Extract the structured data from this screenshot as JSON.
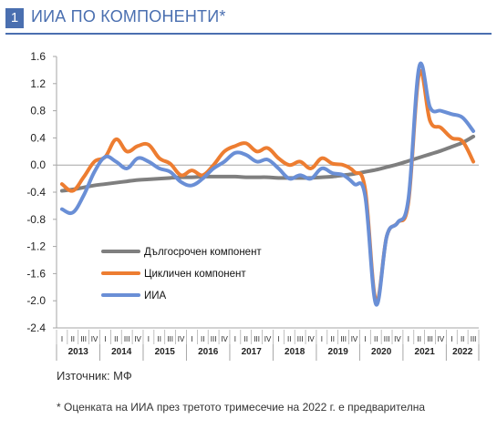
{
  "header": {
    "number": "1",
    "title": "ИИА ПО КОМПОНЕНТИ*"
  },
  "source": "Източник: МФ",
  "footnote": "*  Оценката на ИИА през третото тримесечие на 2022 г. е предварителна",
  "chart_data": {
    "type": "line",
    "ylim": [
      -2.4,
      1.6
    ],
    "yticks": [
      "1.6",
      "1.2",
      "0.8",
      "0.4",
      "0.0",
      "-0.4",
      "-0.8",
      "-1.2",
      "-1.6",
      "-2.0",
      "-2.4"
    ],
    "years": [
      "2013",
      "2014",
      "2015",
      "2016",
      "2017",
      "2018",
      "2019",
      "2020",
      "2021",
      "2022"
    ],
    "quarter_labels": [
      "I",
      "II",
      "III",
      "IV"
    ],
    "x": [
      "2013 I",
      "2013 II",
      "2013 III",
      "2013 IV",
      "2014 I",
      "2014 II",
      "2014 III",
      "2014 IV",
      "2015 I",
      "2015 II",
      "2015 III",
      "2015 IV",
      "2016 I",
      "2016 II",
      "2016 III",
      "2016 IV",
      "2017 I",
      "2017 II",
      "2017 III",
      "2017 IV",
      "2018 I",
      "2018 II",
      "2018 III",
      "2018 IV",
      "2019 I",
      "2019 II",
      "2019 III",
      "2019 IV",
      "2020 I",
      "2020 II",
      "2020 III",
      "2020 IV",
      "2021 I",
      "2021 II",
      "2021 III",
      "2021 IV",
      "2022 I",
      "2022 II",
      "2022 III"
    ],
    "grid": false,
    "legend_position": "lower-left",
    "series": [
      {
        "name": "Дългосрочен компонент",
        "color": "#7f7f7f",
        "values": [
          -0.38,
          -0.36,
          -0.33,
          -0.3,
          -0.28,
          -0.26,
          -0.24,
          -0.22,
          -0.21,
          -0.2,
          -0.19,
          -0.18,
          -0.18,
          -0.17,
          -0.17,
          -0.17,
          -0.17,
          -0.18,
          -0.18,
          -0.18,
          -0.19,
          -0.19,
          -0.19,
          -0.19,
          -0.18,
          -0.17,
          -0.15,
          -0.13,
          -0.1,
          -0.07,
          -0.03,
          0.01,
          0.06,
          0.11,
          0.16,
          0.21,
          0.27,
          0.33,
          0.42
        ]
      },
      {
        "name": "Цикличен компонент",
        "color": "#ed7d31",
        "values": [
          -0.28,
          -0.38,
          -0.18,
          0.05,
          0.12,
          0.38,
          0.2,
          0.28,
          0.3,
          0.1,
          0.02,
          -0.15,
          -0.08,
          -0.15,
          0.0,
          0.2,
          0.28,
          0.32,
          0.2,
          0.25,
          0.1,
          0.0,
          0.05,
          -0.05,
          0.1,
          0.02,
          0.0,
          -0.1,
          -0.35,
          -2.0,
          -1.05,
          -0.85,
          -0.55,
          1.35,
          0.65,
          0.55,
          0.4,
          0.35,
          0.05
        ]
      },
      {
        "name": "ИИА",
        "color": "#6a8fd6",
        "values": [
          -0.65,
          -0.7,
          -0.45,
          -0.1,
          0.12,
          0.05,
          -0.05,
          0.1,
          0.05,
          -0.05,
          -0.1,
          -0.25,
          -0.3,
          -0.2,
          -0.05,
          0.05,
          0.18,
          0.15,
          0.05,
          0.08,
          -0.05,
          -0.2,
          -0.15,
          -0.2,
          -0.05,
          -0.12,
          -0.15,
          -0.28,
          -0.45,
          -2.05,
          -1.05,
          -0.85,
          -0.5,
          1.45,
          0.85,
          0.8,
          0.75,
          0.7,
          0.5
        ]
      }
    ]
  }
}
